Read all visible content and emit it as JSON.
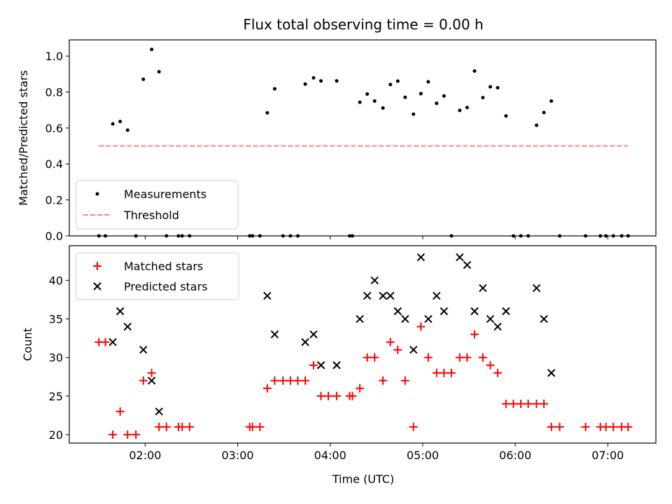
{
  "chart_data": [
    {
      "type": "scatter",
      "title": "Flux total observing time = 0.00 h",
      "xlabel": "",
      "ylabel": "Matched/Predicted stars",
      "xlim": [
        1.18,
        7.52
      ],
      "ylim": [
        0.0,
        1.09
      ],
      "yticks": [
        0.0,
        0.2,
        0.4,
        0.6,
        0.8,
        1.0
      ],
      "ytick_labels": [
        "0.0",
        "0.2",
        "0.4",
        "0.6",
        "0.8",
        "1.0"
      ],
      "xticks": [
        2,
        3,
        4,
        5,
        6,
        7
      ],
      "grid": false,
      "legend_position": "lower-left",
      "series": [
        {
          "name": "Measurements",
          "marker": "dot",
          "color": "#000000",
          "points": [
            [
              1.5,
              0.0
            ],
            [
              1.57,
              0.0
            ],
            [
              1.65,
              0.623
            ],
            [
              1.73,
              0.636
            ],
            [
              1.81,
              0.588
            ],
            [
              1.9,
              0.0
            ],
            [
              1.98,
              0.871
            ],
            [
              2.07,
              1.037
            ],
            [
              2.15,
              0.913
            ],
            [
              2.23,
              0.0
            ],
            [
              2.36,
              0.0
            ],
            [
              2.4,
              0.0
            ],
            [
              2.48,
              0.0
            ],
            [
              3.13,
              0.0
            ],
            [
              3.16,
              0.0
            ],
            [
              3.24,
              0.0
            ],
            [
              3.32,
              0.684
            ],
            [
              3.4,
              0.818
            ],
            [
              3.49,
              0.0
            ],
            [
              3.57,
              0.0
            ],
            [
              3.65,
              0.0
            ],
            [
              3.73,
              0.844
            ],
            [
              3.82,
              0.879
            ],
            [
              3.9,
              0.862
            ],
            [
              4.07,
              0.862
            ],
            [
              4.21,
              0.0
            ],
            [
              4.24,
              0.0
            ],
            [
              4.32,
              0.743
            ],
            [
              4.4,
              0.789
            ],
            [
              4.48,
              0.75
            ],
            [
              4.57,
              0.711
            ],
            [
              4.65,
              0.842
            ],
            [
              4.73,
              0.861
            ],
            [
              4.81,
              0.771
            ],
            [
              4.9,
              0.677
            ],
            [
              4.98,
              0.791
            ],
            [
              5.06,
              0.857
            ],
            [
              5.15,
              0.737
            ],
            [
              5.23,
              0.778
            ],
            [
              5.31,
              0.0
            ],
            [
              5.4,
              0.698
            ],
            [
              5.48,
              0.714
            ],
            [
              5.56,
              0.917
            ],
            [
              5.65,
              0.769
            ],
            [
              5.73,
              0.829
            ],
            [
              5.81,
              0.824
            ],
            [
              5.9,
              0.667
            ],
            [
              5.98,
              0.0
            ],
            [
              6.06,
              0.0
            ],
            [
              6.14,
              0.0
            ],
            [
              6.23,
              0.615
            ],
            [
              6.31,
              0.686
            ],
            [
              6.39,
              0.75
            ],
            [
              6.48,
              0.0
            ],
            [
              6.76,
              0.0
            ],
            [
              6.92,
              0.0
            ],
            [
              6.98,
              0.0
            ],
            [
              7.06,
              0.0
            ],
            [
              7.15,
              0.0
            ],
            [
              7.22,
              0.0
            ]
          ]
        },
        {
          "name": "Threshold",
          "marker": "dashed-line",
          "color": "#ff8080",
          "points": [
            [
              1.5,
              0.5
            ],
            [
              7.22,
              0.5
            ]
          ]
        }
      ]
    },
    {
      "type": "scatter",
      "title": "",
      "xlabel": "Time (UTC)",
      "ylabel": "Count",
      "xlim": [
        1.18,
        7.52
      ],
      "ylim": [
        18.9,
        44.5
      ],
      "yticks": [
        20,
        25,
        30,
        35,
        40
      ],
      "ytick_labels": [
        "20",
        "25",
        "30",
        "35",
        "40"
      ],
      "xticks": [
        2,
        3,
        4,
        5,
        6,
        7
      ],
      "xtick_labels": [
        "02:00",
        "03:00",
        "04:00",
        "05:00",
        "06:00",
        "07:00"
      ],
      "grid": false,
      "legend_position": "upper-left",
      "series": [
        {
          "name": "Matched stars",
          "marker": "plus",
          "color": "#ff0000",
          "points": [
            [
              1.5,
              32
            ],
            [
              1.57,
              32
            ],
            [
              1.65,
              20
            ],
            [
              1.73,
              23
            ],
            [
              1.81,
              20
            ],
            [
              1.9,
              20
            ],
            [
              1.98,
              27
            ],
            [
              2.07,
              28
            ],
            [
              2.15,
              21
            ],
            [
              2.23,
              21
            ],
            [
              2.36,
              21
            ],
            [
              2.4,
              21
            ],
            [
              2.48,
              21
            ],
            [
              3.13,
              21
            ],
            [
              3.16,
              21
            ],
            [
              3.24,
              21
            ],
            [
              3.32,
              26
            ],
            [
              3.4,
              27
            ],
            [
              3.49,
              27
            ],
            [
              3.57,
              27
            ],
            [
              3.65,
              27
            ],
            [
              3.73,
              27
            ],
            [
              3.82,
              29
            ],
            [
              3.9,
              25
            ],
            [
              3.98,
              25
            ],
            [
              4.07,
              25
            ],
            [
              4.21,
              25
            ],
            [
              4.24,
              25
            ],
            [
              4.32,
              26
            ],
            [
              4.4,
              30
            ],
            [
              4.48,
              30
            ],
            [
              4.57,
              27
            ],
            [
              4.65,
              32
            ],
            [
              4.73,
              31
            ],
            [
              4.81,
              27
            ],
            [
              4.9,
              21
            ],
            [
              4.98,
              34
            ],
            [
              5.06,
              30
            ],
            [
              5.15,
              28
            ],
            [
              5.23,
              28
            ],
            [
              5.31,
              28
            ],
            [
              5.4,
              30
            ],
            [
              5.48,
              30
            ],
            [
              5.56,
              33
            ],
            [
              5.65,
              30
            ],
            [
              5.73,
              29
            ],
            [
              5.81,
              28
            ],
            [
              5.9,
              24
            ],
            [
              5.98,
              24
            ],
            [
              6.06,
              24
            ],
            [
              6.14,
              24
            ],
            [
              6.23,
              24
            ],
            [
              6.31,
              24
            ],
            [
              6.39,
              21
            ],
            [
              6.48,
              21
            ],
            [
              6.76,
              21
            ],
            [
              6.92,
              21
            ],
            [
              6.98,
              21
            ],
            [
              7.06,
              21
            ],
            [
              7.15,
              21
            ],
            [
              7.22,
              21
            ]
          ]
        },
        {
          "name": "Predicted stars",
          "marker": "x",
          "color": "#000000",
          "points": [
            [
              1.65,
              32
            ],
            [
              1.73,
              36
            ],
            [
              1.81,
              34
            ],
            [
              1.98,
              31
            ],
            [
              2.07,
              27
            ],
            [
              2.15,
              23
            ],
            [
              3.32,
              38
            ],
            [
              3.4,
              33
            ],
            [
              3.73,
              32
            ],
            [
              3.82,
              33
            ],
            [
              3.9,
              29
            ],
            [
              4.07,
              29
            ],
            [
              4.32,
              35
            ],
            [
              4.4,
              38
            ],
            [
              4.48,
              40
            ],
            [
              4.57,
              38
            ],
            [
              4.65,
              38
            ],
            [
              4.73,
              36
            ],
            [
              4.81,
              35
            ],
            [
              4.9,
              31
            ],
            [
              4.98,
              43
            ],
            [
              5.06,
              35
            ],
            [
              5.15,
              38
            ],
            [
              5.23,
              36
            ],
            [
              5.4,
              43
            ],
            [
              5.48,
              42
            ],
            [
              5.56,
              36
            ],
            [
              5.65,
              39
            ],
            [
              5.73,
              35
            ],
            [
              5.81,
              34
            ],
            [
              5.9,
              36
            ],
            [
              6.23,
              39
            ],
            [
              6.31,
              35
            ],
            [
              6.39,
              28
            ]
          ]
        }
      ]
    }
  ]
}
